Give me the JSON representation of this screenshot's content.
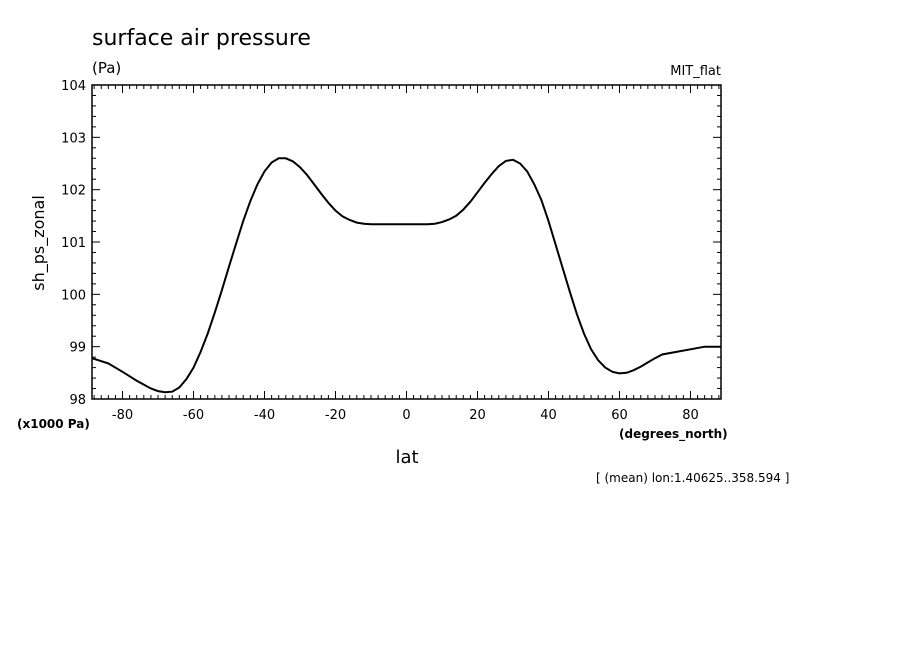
{
  "header": {
    "title": "surface air pressure",
    "units": "(Pa)",
    "source": "MIT_flat"
  },
  "footer": {
    "note": "[ (mean) lon:1.40625..358.594 ]"
  },
  "chart_data": {
    "type": "line",
    "title": "surface air pressure",
    "xlabel": "lat",
    "ylabel": "sh_ps_zonal",
    "xunits": "(degrees_north)",
    "yunits": "(x1000 Pa)",
    "xlim": [
      -88.6,
      88.6
    ],
    "ylim": [
      98,
      104
    ],
    "xticks": [
      -80,
      -60,
      -40,
      -20,
      0,
      20,
      40,
      60,
      80
    ],
    "xtick_labels": [
      "-80",
      "-60",
      "-40",
      "-20",
      "0",
      "20",
      "40",
      "60",
      "80"
    ],
    "yticks": [
      98,
      99,
      100,
      101,
      102,
      103,
      104
    ],
    "ytick_labels": [
      "98",
      "99",
      "100",
      "101",
      "102",
      "103",
      "104"
    ],
    "grid": false,
    "series": [
      {
        "x": [
          -88.6,
          -84,
          -80,
          -76,
          -72,
          -70,
          -68,
          -66,
          -64,
          -62,
          -60,
          -58,
          -56,
          -54,
          -52,
          -50,
          -48,
          -46,
          -44,
          -42,
          -40,
          -38,
          -36,
          -34,
          -32,
          -30,
          -28,
          -26,
          -24,
          -22,
          -20,
          -18,
          -16,
          -14,
          -12,
          -10,
          -8,
          -6,
          -4,
          -2,
          0,
          2,
          4,
          6,
          8,
          10,
          12,
          14,
          16,
          18,
          20,
          22,
          24,
          26,
          28,
          30,
          32,
          34,
          36,
          38,
          40,
          42,
          44,
          46,
          48,
          50,
          52,
          54,
          56,
          58,
          60,
          62,
          64,
          66,
          68,
          70,
          72,
          76,
          80,
          84,
          88.6
        ],
        "y": [
          98.78,
          98.68,
          98.52,
          98.35,
          98.2,
          98.15,
          98.13,
          98.14,
          98.22,
          98.38,
          98.6,
          98.9,
          99.25,
          99.65,
          100.08,
          100.53,
          100.97,
          101.4,
          101.78,
          102.1,
          102.35,
          102.52,
          102.6,
          102.6,
          102.54,
          102.43,
          102.28,
          102.1,
          101.92,
          101.75,
          101.6,
          101.49,
          101.42,
          101.37,
          101.35,
          101.34,
          101.34,
          101.34,
          101.34,
          101.34,
          101.34,
          101.34,
          101.34,
          101.34,
          101.35,
          101.38,
          101.43,
          101.5,
          101.62,
          101.77,
          101.95,
          102.13,
          102.3,
          102.45,
          102.55,
          102.57,
          102.5,
          102.35,
          102.1,
          101.8,
          101.4,
          100.95,
          100.5,
          100.05,
          99.62,
          99.25,
          98.95,
          98.74,
          98.6,
          98.52,
          98.49,
          98.5,
          98.55,
          98.62,
          98.7,
          98.78,
          98.85,
          98.9,
          98.95,
          99.0,
          99.0
        ]
      }
    ]
  }
}
